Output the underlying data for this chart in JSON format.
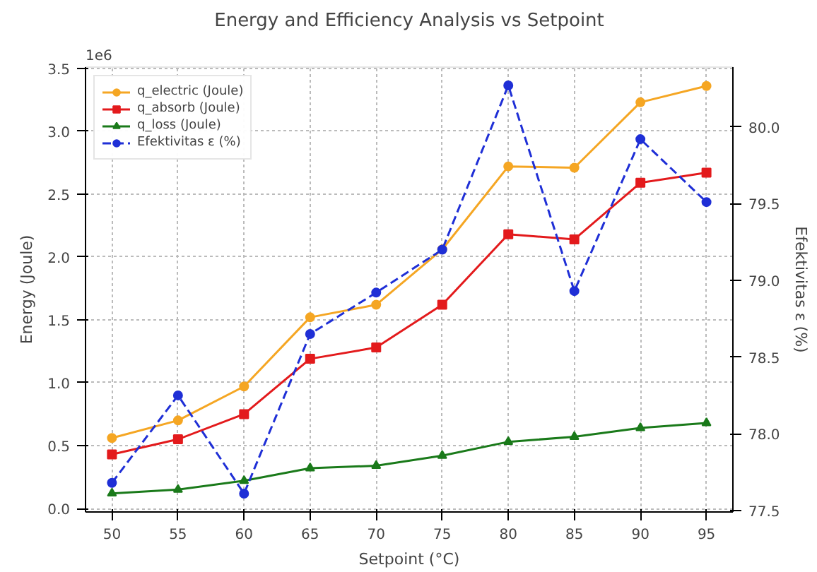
{
  "chart_data": {
    "type": "line",
    "title": "Energy and Efficiency Analysis vs Setpoint",
    "xlabel": "Setpoint (°C)",
    "ylabel": "Energy (Joule)",
    "y2label": "Efektivitas ε (%)",
    "x": [
      50,
      55,
      60,
      65,
      70,
      75,
      80,
      85,
      90,
      95
    ],
    "series": [
      {
        "name": "q_electric (Joule)",
        "color": "#f5a623",
        "marker": "circle",
        "line_style": "solid",
        "values": [
          0.56,
          0.7,
          0.97,
          1.52,
          1.62,
          2.06,
          2.72,
          2.71,
          3.23,
          3.36
        ]
      },
      {
        "name": "q_absorb (Joule)",
        "color": "#e31a1c",
        "marker": "square",
        "line_style": "solid",
        "values": [
          0.43,
          0.55,
          0.75,
          1.19,
          1.28,
          1.62,
          2.18,
          2.14,
          2.59,
          2.67
        ]
      },
      {
        "name": "q_loss (Joule)",
        "color": "#1a7a1a",
        "marker": "triangle",
        "line_style": "solid",
        "values": [
          0.12,
          0.15,
          0.22,
          0.32,
          0.34,
          0.42,
          0.53,
          0.57,
          0.64,
          0.68
        ]
      },
      {
        "name": "Efektivitas ε (%)",
        "color": "#1f2fd6",
        "marker": "circle",
        "line_style": "dashed",
        "axis": "y2",
        "values": [
          77.68,
          78.25,
          77.61,
          78.65,
          78.92,
          79.2,
          80.27,
          78.93,
          79.92,
          79.51
        ]
      }
    ],
    "xlim": [
      48,
      97
    ],
    "xticks": [
      50,
      55,
      60,
      65,
      70,
      75,
      80,
      85,
      90,
      95
    ],
    "ylim": [
      -0.028,
      3.51
    ],
    "yticks": [
      {
        "value": 0,
        "label": "0.0"
      },
      0.5,
      {
        "value": 1,
        "label": "1.0"
      },
      1.5,
      {
        "value": 2,
        "label": "2.0"
      },
      2.5,
      {
        "value": 3,
        "label": "3.0"
      },
      3.5
    ],
    "y2lim": [
      77.49,
      80.39
    ],
    "y2ticks": [
      77.5,
      {
        "value": 78,
        "label": "78.0"
      },
      78.5,
      {
        "value": 79,
        "label": "79.0"
      },
      79.5,
      {
        "value": 80,
        "label": "80.0"
      }
    ],
    "annotations": [
      "1e6"
    ],
    "grid": true,
    "legend": "top left"
  }
}
